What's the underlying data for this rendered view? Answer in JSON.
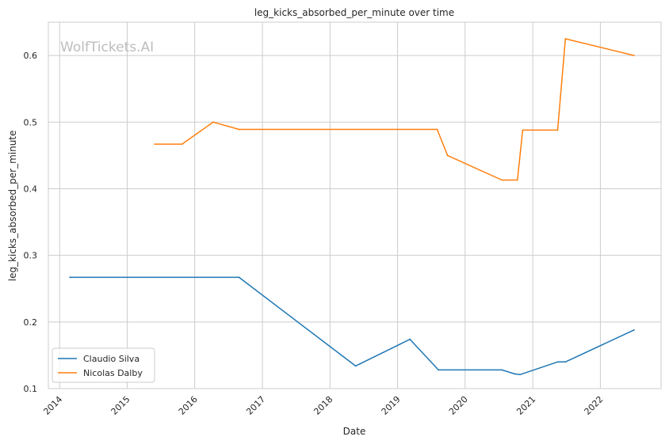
{
  "chart_data": {
    "type": "line",
    "title": "leg_kicks_absorbed_per_minute over time",
    "xlabel": "Date",
    "ylabel": "leg_kicks_absorbed_per_minute",
    "watermark": "WolfTickets.AI",
    "xlim": [
      "2013-11-01",
      "2022-11-25"
    ],
    "ylim": [
      0.1,
      0.65
    ],
    "x_ticks": [
      "2014",
      "2015",
      "2016",
      "2017",
      "2018",
      "2019",
      "2020",
      "2021",
      "2022"
    ],
    "y_ticks": [
      "0.1",
      "0.2",
      "0.3",
      "0.4",
      "0.5",
      "0.6"
    ],
    "y_tick_values": [
      0.1,
      0.2,
      0.3,
      0.4,
      0.5,
      0.6
    ],
    "grid": true,
    "legend_position": "lower-left",
    "series": [
      {
        "name": "Claudio Silva",
        "color": "#1f77b4",
        "points": [
          [
            "2014-02-25",
            0.267
          ],
          [
            "2016-08-27",
            0.267
          ],
          [
            "2018-05-19",
            0.134
          ],
          [
            "2019-03-09",
            0.174
          ],
          [
            "2019-08-10",
            0.128
          ],
          [
            "2020-07-18",
            0.128
          ],
          [
            "2020-09-26",
            0.122
          ],
          [
            "2020-10-24",
            0.121
          ],
          [
            "2021-05-15",
            0.14
          ],
          [
            "2021-06-26",
            0.14
          ],
          [
            "2022-07-02",
            0.188
          ]
        ]
      },
      {
        "name": "Nicolas Dalby",
        "color": "#ff7f0e",
        "points": [
          [
            "2015-05-30",
            0.467
          ],
          [
            "2015-10-24",
            0.467
          ],
          [
            "2016-04-10",
            0.5
          ],
          [
            "2016-08-27",
            0.489
          ],
          [
            "2019-08-03",
            0.489
          ],
          [
            "2019-09-28",
            0.45
          ],
          [
            "2020-07-18",
            0.413
          ],
          [
            "2020-10-10",
            0.413
          ],
          [
            "2020-11-07",
            0.488
          ],
          [
            "2021-05-15",
            0.488
          ],
          [
            "2021-06-26",
            0.625
          ],
          [
            "2022-07-02",
            0.6
          ]
        ]
      }
    ]
  }
}
